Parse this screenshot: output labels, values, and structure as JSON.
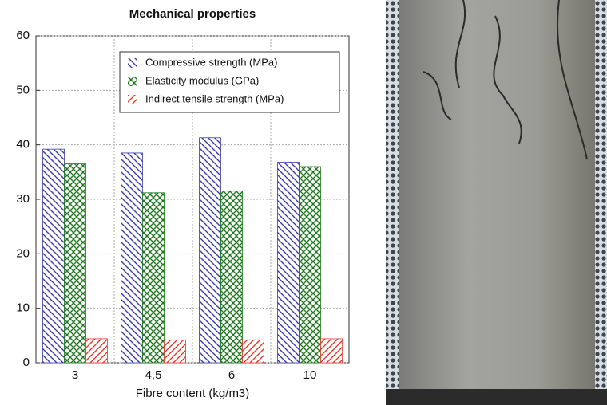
{
  "chart_data": {
    "type": "bar",
    "title": "Mechanical properties",
    "x_label": "Fibre content (kg/m3)",
    "categories": [
      "3",
      "4,5",
      "6",
      "10"
    ],
    "series": [
      {
        "name": "Compressive strength (MPa)",
        "color": "#3b3bb0",
        "hatch": "backslash",
        "values": [
          39.2,
          38.5,
          41.3,
          36.8
        ]
      },
      {
        "name": "Elasticity modulus (GPa)",
        "color": "#1c7a1c",
        "hatch": "cross",
        "values": [
          36.5,
          31.2,
          31.5,
          36.0
        ]
      },
      {
        "name": "Indirect tensile strength (MPa)",
        "color": "#e33a2e",
        "hatch": "slash",
        "values": [
          4.4,
          4.2,
          4.2,
          4.4
        ]
      }
    ],
    "ylim": [
      0,
      60
    ],
    "yticks": [
      0,
      10,
      20,
      30,
      40,
      50,
      60
    ],
    "grid": true,
    "legend": "upper right"
  }
}
